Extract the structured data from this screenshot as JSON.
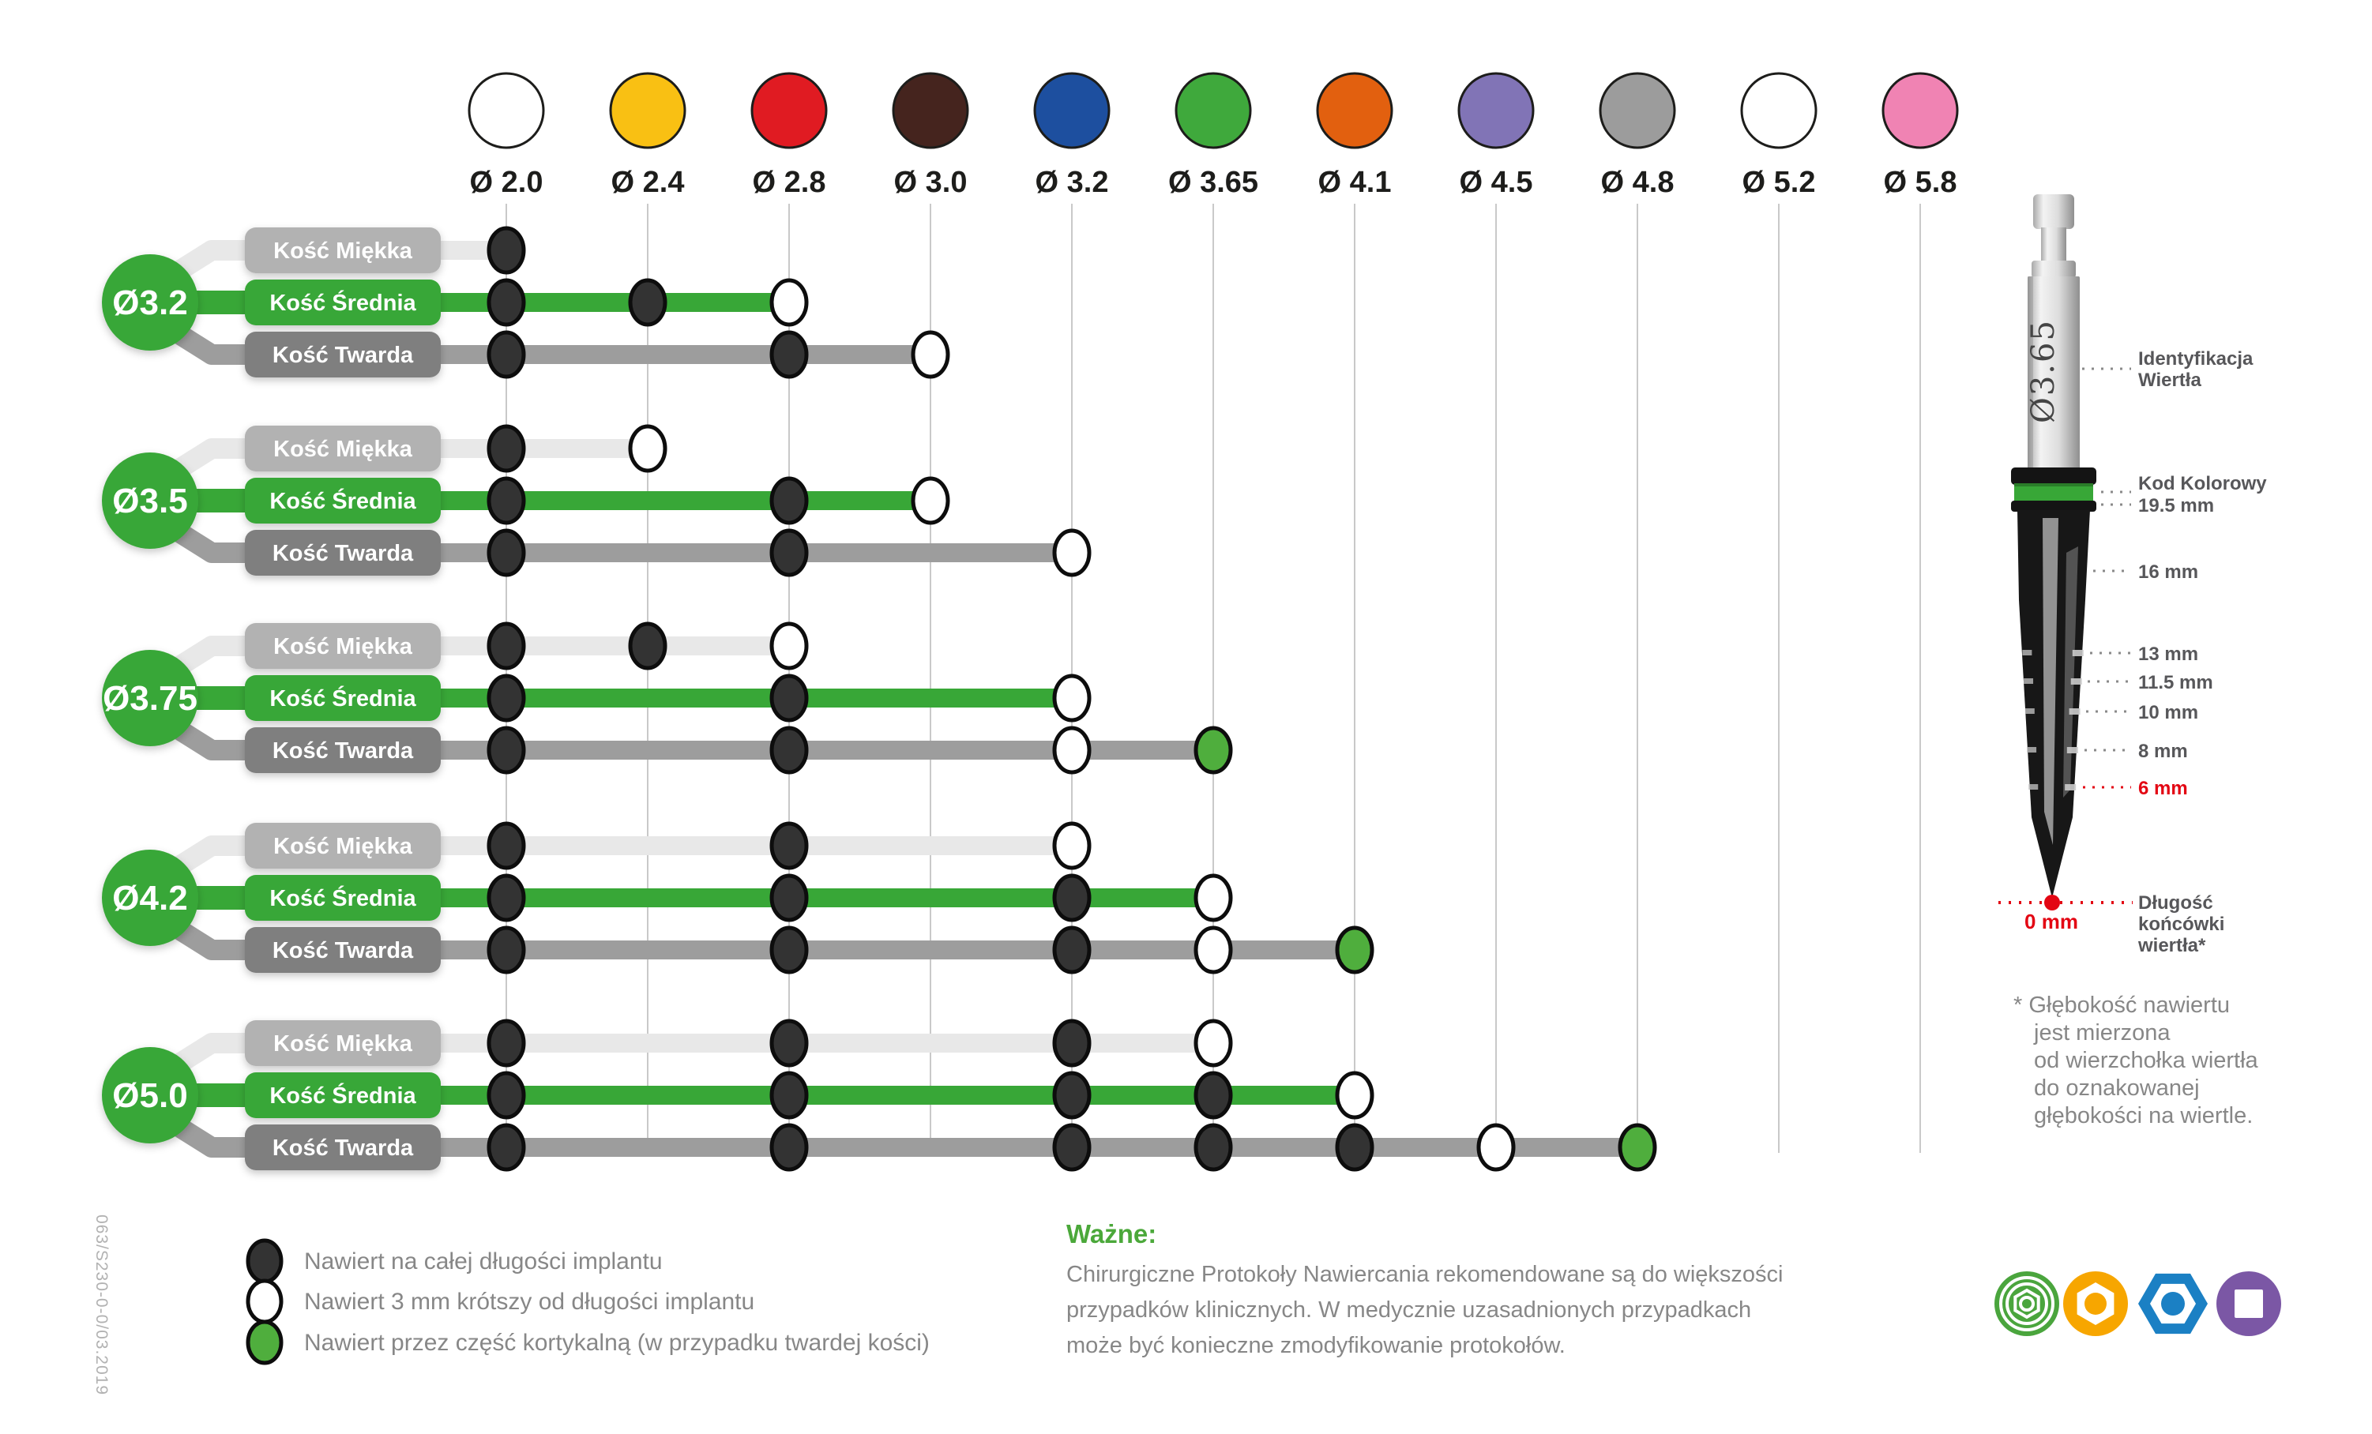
{
  "doc_number": "063/S230-0-0/03.2019",
  "colors": {
    "accent_green": "#38a737",
    "text_gray": "#878787",
    "dark": "#1d1d1b",
    "red": "#e30613",
    "grid": "#c9c9c9",
    "track_soft": "#e8e8e8",
    "track_hard": "#9d9d9d",
    "label_soft": "#b2b2b2",
    "label_hard": "#7f7f7f",
    "dot_full": "#333333",
    "dot_short": "#ffffff",
    "dot_cortical": "#4fae3d"
  },
  "chart_data": {
    "type": "table",
    "title": "",
    "columns": [
      {
        "dia": "2.0",
        "label": "Ø 2.0",
        "color": "#ffffff"
      },
      {
        "dia": "2.4",
        "label": "Ø 2.4",
        "color": "#f9c013"
      },
      {
        "dia": "2.8",
        "label": "Ø 2.8",
        "color": "#e01b22"
      },
      {
        "dia": "3.0",
        "label": "Ø 3.0",
        "color": "#45241e"
      },
      {
        "dia": "3.2",
        "label": "Ø 3.2",
        "color": "#1d4f9f"
      },
      {
        "dia": "3.65",
        "label": "Ø 3.65",
        "color": "#3fa93c"
      },
      {
        "dia": "4.1",
        "label": "Ø 4.1",
        "color": "#e2600f"
      },
      {
        "dia": "4.5",
        "label": "Ø 4.5",
        "color": "#8174b6"
      },
      {
        "dia": "4.8",
        "label": "Ø 4.8",
        "color": "#9c9c9c"
      },
      {
        "dia": "5.2",
        "label": "Ø 5.2",
        "color": "#ffffff"
      },
      {
        "dia": "5.8",
        "label": "Ø 5.8",
        "color": "#f083b3"
      }
    ],
    "bone_types": [
      "Kość Miękka",
      "Kość Średnia",
      "Kość Twarda"
    ],
    "groups": [
      {
        "implant": "Ø3.2",
        "rows": [
          {
            "bone": "Kość Miękka",
            "dots": [
              [
                "2.0",
                "full"
              ]
            ]
          },
          {
            "bone": "Kość Średnia",
            "dots": [
              [
                "2.0",
                "full"
              ],
              [
                "2.4",
                "full"
              ],
              [
                "2.8",
                "short"
              ]
            ]
          },
          {
            "bone": "Kość Twarda",
            "dots": [
              [
                "2.0",
                "full"
              ],
              [
                "2.8",
                "full"
              ],
              [
                "3.0",
                "short"
              ]
            ]
          }
        ]
      },
      {
        "implant": "Ø3.5",
        "rows": [
          {
            "bone": "Kość Miękka",
            "dots": [
              [
                "2.0",
                "full"
              ],
              [
                "2.4",
                "short"
              ]
            ]
          },
          {
            "bone": "Kość Średnia",
            "dots": [
              [
                "2.0",
                "full"
              ],
              [
                "2.8",
                "full"
              ],
              [
                "3.0",
                "short"
              ]
            ]
          },
          {
            "bone": "Kość Twarda",
            "dots": [
              [
                "2.0",
                "full"
              ],
              [
                "2.8",
                "full"
              ],
              [
                "3.2",
                "short"
              ]
            ]
          }
        ]
      },
      {
        "implant": "Ø3.75",
        "rows": [
          {
            "bone": "Kość Miękka",
            "dots": [
              [
                "2.0",
                "full"
              ],
              [
                "2.4",
                "full"
              ],
              [
                "2.8",
                "short"
              ]
            ]
          },
          {
            "bone": "Kość Średnia",
            "dots": [
              [
                "2.0",
                "full"
              ],
              [
                "2.8",
                "full"
              ],
              [
                "3.2",
                "short"
              ]
            ]
          },
          {
            "bone": "Kość Twarda",
            "dots": [
              [
                "2.0",
                "full"
              ],
              [
                "2.8",
                "full"
              ],
              [
                "3.2",
                "short"
              ],
              [
                "3.65",
                "cortical"
              ]
            ]
          }
        ]
      },
      {
        "implant": "Ø4.2",
        "rows": [
          {
            "bone": "Kość Miękka",
            "dots": [
              [
                "2.0",
                "full"
              ],
              [
                "2.8",
                "full"
              ],
              [
                "3.2",
                "short"
              ]
            ]
          },
          {
            "bone": "Kość Średnia",
            "dots": [
              [
                "2.0",
                "full"
              ],
              [
                "2.8",
                "full"
              ],
              [
                "3.2",
                "full"
              ],
              [
                "3.65",
                "short"
              ]
            ]
          },
          {
            "bone": "Kość Twarda",
            "dots": [
              [
                "2.0",
                "full"
              ],
              [
                "2.8",
                "full"
              ],
              [
                "3.2",
                "full"
              ],
              [
                "3.65",
                "short"
              ],
              [
                "4.1",
                "cortical"
              ]
            ]
          }
        ]
      },
      {
        "implant": "Ø5.0",
        "rows": [
          {
            "bone": "Kość Miękka",
            "dots": [
              [
                "2.0",
                "full"
              ],
              [
                "2.8",
                "full"
              ],
              [
                "3.2",
                "full"
              ],
              [
                "3.65",
                "short"
              ]
            ]
          },
          {
            "bone": "Kość Średnia",
            "dots": [
              [
                "2.0",
                "full"
              ],
              [
                "2.8",
                "full"
              ],
              [
                "3.2",
                "full"
              ],
              [
                "3.65",
                "full"
              ],
              [
                "4.1",
                "short"
              ]
            ]
          },
          {
            "bone": "Kość Twarda",
            "dots": [
              [
                "2.0",
                "full"
              ],
              [
                "2.8",
                "full"
              ],
              [
                "3.2",
                "full"
              ],
              [
                "3.65",
                "full"
              ],
              [
                "4.1",
                "full"
              ],
              [
                "4.5",
                "short"
              ],
              [
                "4.8",
                "cortical"
              ]
            ]
          }
        ]
      }
    ]
  },
  "legend": [
    {
      "type": "full",
      "label": "Nawiert na całej długości implantu"
    },
    {
      "type": "short",
      "label": "Nawiert 3 mm krótszy od długości implantu"
    },
    {
      "type": "cortical",
      "label": "Nawiert przez część kortykalną (w przypadku twardej kości)"
    }
  ],
  "important": {
    "heading": "Ważne:",
    "body": "Chirurgiczne Protokoły Nawiercania rekomendowane są do większości\nprzypadków klinicznych. W medycznie uzasadnionych przypadkach\nmoże być konieczne zmodyfikowanie protokołów."
  },
  "footnote": "* Głębokość nawiertu\njest mierzona\nod wierzchołka wiertła\ndo oznakowanej\ngłębokości na wiertle.",
  "drill_diagram": {
    "shank_marking": "Ø3.65",
    "labels": {
      "identification": "Identyfikacja\nWiertła",
      "color_code": "Kod Kolorowy",
      "tip_length": "Długość\nkońcówki\nwiertła*",
      "zero": "0 mm"
    },
    "depth_marks": [
      {
        "label": "19.5 mm",
        "red": false
      },
      {
        "label": "16 mm",
        "red": false
      },
      {
        "label": "13 mm",
        "red": false
      },
      {
        "label": "11.5 mm",
        "red": false
      },
      {
        "label": "10 mm",
        "red": false
      },
      {
        "label": "8 mm",
        "red": false
      },
      {
        "label": "6 mm",
        "red": true
      }
    ]
  },
  "logos": [
    {
      "shape": "hexagon-rings",
      "color": "#4aa53d"
    },
    {
      "shape": "hexagon-ring-dot",
      "color": "#f7a600"
    },
    {
      "shape": "hexagon-nut",
      "color": "#1b80c4"
    },
    {
      "shape": "square-dot",
      "color": "#7b57a5"
    }
  ]
}
